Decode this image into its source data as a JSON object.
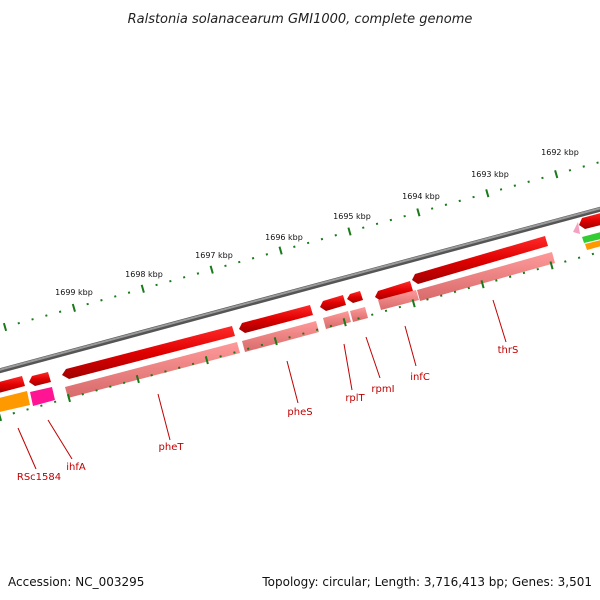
{
  "title": "Ralstonia solanacearum GMI1000, complete genome",
  "footer": {
    "accession": "Accession: NC_003295",
    "summary": "Topology: circular; Length: 3,716,413 bp; Genes: 3,501"
  },
  "kbp_labels": [
    "1692 kbp",
    "1693 kbp",
    "1694 kbp",
    "1695 kbp",
    "1696 kbp",
    "1697 kbp",
    "1698 kbp",
    "1699 kbp"
  ],
  "gene_labels": [
    "thrS",
    "infC",
    "rpmI",
    "rplT",
    "pheS",
    "pheT",
    "ihfA",
    "RSc1584"
  ],
  "colors": {
    "backbone": "#808080",
    "cds": "#e00000",
    "cds_light": "#f08080",
    "gene_pink": "#ff1493",
    "orange": "#ff9900",
    "green": "#33cc33",
    "tick": "#1a7a1a",
    "label": "#c00000"
  }
}
